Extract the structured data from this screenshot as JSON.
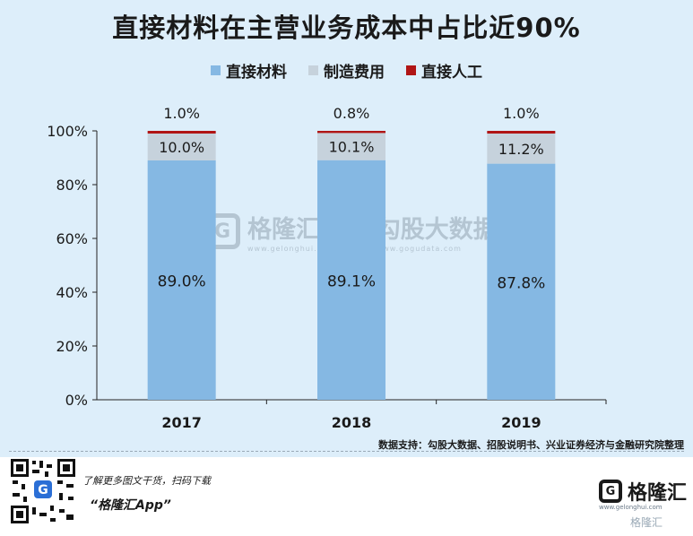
{
  "title": "直接材料在主营业务成本中占比近90%",
  "legend": [
    {
      "label": "直接材料",
      "color": "#85b8e3"
    },
    {
      "label": "制造费用",
      "color": "#c6d2dc"
    },
    {
      "label": "直接人工",
      "color": "#b01515"
    }
  ],
  "chart_data": {
    "type": "bar",
    "stacked": true,
    "title": "直接材料在主营业务成本中占比近90%",
    "categories": [
      "2017",
      "2018",
      "2019"
    ],
    "series": [
      {
        "name": "直接材料",
        "values": [
          89.0,
          89.1,
          87.8
        ],
        "labels": [
          "89.0%",
          "89.1%",
          "87.8%"
        ],
        "color": "#85b8e3"
      },
      {
        "name": "制造费用",
        "values": [
          10.0,
          10.1,
          11.2
        ],
        "labels": [
          "10.0%",
          "10.1%",
          "11.2%"
        ],
        "color": "#c6d2dc"
      },
      {
        "name": "直接人工",
        "values": [
          1.0,
          0.8,
          1.0
        ],
        "labels": [
          "1.0%",
          "0.8%",
          "1.0%"
        ],
        "color": "#b01515"
      }
    ],
    "ylim": [
      0,
      100
    ],
    "yticks": [
      "0%",
      "20%",
      "40%",
      "60%",
      "80%",
      "100%"
    ],
    "ytick_values": [
      0,
      20,
      40,
      60,
      80,
      100
    ],
    "grid": false,
    "legend_position": "top"
  },
  "watermark": {
    "brand": "格隆汇",
    "brand_url": "www.gelonghui.com",
    "partner": "勾股大数据",
    "partner_url": "www.gogudata.com"
  },
  "source": "数据支持：勾股大数据、招股说明书、兴业证券经济与金融研究院整理",
  "footer": {
    "promo_line1": "了解更多图文干货，扫码下载",
    "promo_line2": "“格隆汇App”",
    "brand_name": "格隆汇",
    "brand_url": "www.gelonghui.com",
    "corner_mark": "格隆汇"
  },
  "icons": {
    "qr": "qr-code-icon",
    "logo": "gelonghui-logo-icon"
  }
}
